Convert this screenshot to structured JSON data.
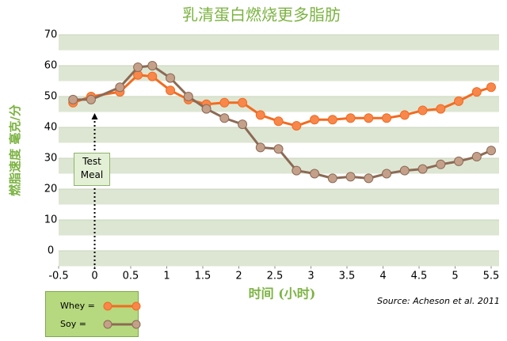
{
  "chart_data": {
    "type": "line",
    "title": "乳清蛋白燃烧更多脂肪",
    "x_label": "时间 (小时)",
    "y_label": "燃脂速度 毫克/分",
    "annotation": "Test Meal",
    "source": "Source: Acheson et al. 2011",
    "x": [
      -0.3,
      -0.05,
      0.35,
      0.6,
      0.8,
      1.05,
      1.3,
      1.55,
      1.8,
      2.05,
      2.3,
      2.55,
      2.8,
      3.05,
      3.3,
      3.55,
      3.8,
      4.05,
      4.3,
      4.55,
      4.8,
      5.05,
      5.3,
      5.5
    ],
    "series": [
      {
        "name": "Whey =",
        "color": "#f26b21",
        "marker_color": "#f7874a",
        "values": [
          48,
          50,
          51.5,
          57,
          56.5,
          52,
          49,
          47.5,
          48,
          48,
          44,
          42,
          40.5,
          42.5,
          42.5,
          43,
          43,
          43,
          44,
          45.5,
          46,
          48.5,
          51.5,
          53
        ]
      },
      {
        "name": "Soy =",
        "color": "#8c6a55",
        "marker_color": "#c4a08a",
        "values": [
          49,
          49,
          53,
          59.5,
          60,
          56,
          50,
          46,
          43,
          41,
          33.5,
          33,
          26,
          25,
          23.5,
          24,
          23.5,
          25,
          26,
          26.5,
          28,
          29,
          30.5,
          32.5
        ]
      }
    ],
    "xlim": [
      -0.5,
      5.5
    ],
    "xticks": [
      -0.5,
      0,
      0.5,
      1,
      1.5,
      2,
      2.5,
      3,
      3.5,
      4,
      4.5,
      5,
      5.5
    ],
    "ylim": [
      -5,
      70
    ],
    "yticks": [
      0,
      10,
      20,
      30,
      40,
      50,
      60,
      70
    ],
    "grid": true
  }
}
